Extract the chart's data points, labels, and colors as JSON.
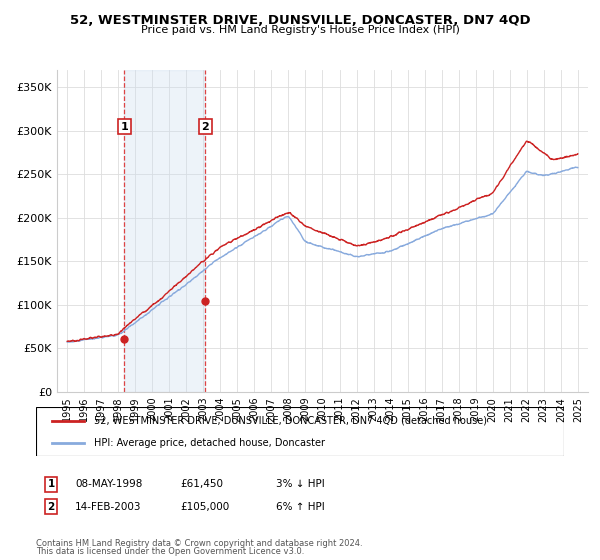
{
  "title": "52, WESTMINSTER DRIVE, DUNSVILLE, DONCASTER, DN7 4QD",
  "subtitle": "Price paid vs. HM Land Registry's House Price Index (HPI)",
  "ylabel_ticks": [
    "£0",
    "£50K",
    "£100K",
    "£150K",
    "£200K",
    "£250K",
    "£300K",
    "£350K"
  ],
  "ytick_values": [
    0,
    50000,
    100000,
    150000,
    200000,
    250000,
    300000,
    350000
  ],
  "ylim": [
    0,
    370000
  ],
  "sale1_year": 1998.35,
  "sale1_price": 61450,
  "sale1_label": "1",
  "sale1_date": "08-MAY-1998",
  "sale1_price_str": "£61,450",
  "sale1_hpi": "3% ↓ HPI",
  "sale2_year": 2003.12,
  "sale2_price": 105000,
  "sale2_label": "2",
  "sale2_date": "14-FEB-2003",
  "sale2_price_str": "£105,000",
  "sale2_hpi": "6% ↑ HPI",
  "hpi_line_color": "#88aadd",
  "price_line_color": "#cc2222",
  "sale_dot_color": "#cc2222",
  "vline_color": "#dd4444",
  "highlight_color": "#ccddf0",
  "legend_label1": "52, WESTMINSTER DRIVE, DUNSVILLE, DONCASTER, DN7 4QD (detached house)",
  "legend_label2": "HPI: Average price, detached house, Doncaster",
  "footer1": "Contains HM Land Registry data © Crown copyright and database right 2024.",
  "footer2": "This data is licensed under the Open Government Licence v3.0."
}
